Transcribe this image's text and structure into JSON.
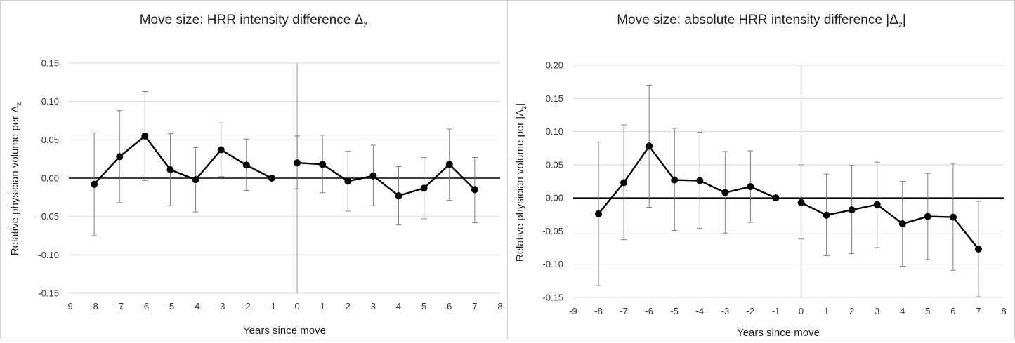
{
  "colors": {
    "gridline": "#d9d9d9",
    "zero_line": "#000000",
    "event_line": "#a6a6a6",
    "series": "#000000",
    "error_bar": "#7f7f7f",
    "border": "#d0d0d0"
  },
  "chart_data": [
    {
      "type": "line",
      "title": "Move size: HRR intensity difference Δ",
      "title_subscript": "z",
      "xlabel": "Years since move",
      "ylabel": "Relative physician volume per Δ",
      "ylabel_subscript": "z",
      "xlim": [
        -9,
        8
      ],
      "ylim": [
        -0.15,
        0.15
      ],
      "x_ticks": [
        -9,
        -8,
        -7,
        -6,
        -5,
        -4,
        -3,
        -2,
        -1,
        0,
        1,
        2,
        3,
        4,
        5,
        6,
        7,
        8
      ],
      "x_tick_labels": [
        "-9",
        "-8",
        "-7",
        "-6",
        "-5",
        "-4",
        "-3",
        "-2",
        "-1",
        "0",
        "1",
        "2",
        "3",
        "4",
        "5",
        "6",
        "7",
        "8"
      ],
      "y_ticks": [
        -0.15,
        -0.1,
        -0.05,
        0.0,
        0.05,
        0.1,
        0.15
      ],
      "y_tick_labels": [
        "-0.15",
        "-0.10",
        "-0.05",
        "0.00",
        "0.05",
        "0.10",
        "0.15"
      ],
      "grid": true,
      "reference_line_x": 0,
      "series": [
        {
          "segments": [
            [
              -8,
              -7,
              -6,
              -5,
              -4,
              -3,
              -2,
              -1
            ],
            [
              0,
              1,
              2,
              3,
              4,
              5,
              6,
              7
            ]
          ],
          "x": [
            -8,
            -7,
            -6,
            -5,
            -4,
            -3,
            -2,
            -1,
            0,
            1,
            2,
            3,
            4,
            5,
            6,
            7
          ],
          "y": [
            -0.008,
            0.028,
            0.055,
            0.011,
            -0.002,
            0.037,
            0.017,
            0.0,
            0.02,
            0.018,
            -0.004,
            0.003,
            -0.023,
            -0.013,
            0.018,
            -0.015
          ],
          "y_lower": [
            -0.075,
            -0.032,
            -0.003,
            -0.036,
            -0.044,
            0.002,
            -0.016,
            0.0,
            -0.014,
            -0.019,
            -0.043,
            -0.036,
            -0.061,
            -0.053,
            -0.029,
            -0.058
          ],
          "y_upper": [
            0.059,
            0.088,
            0.113,
            0.058,
            0.04,
            0.072,
            0.051,
            0.0,
            0.055,
            0.056,
            0.035,
            0.043,
            0.015,
            0.027,
            0.064,
            0.027
          ]
        }
      ]
    },
    {
      "type": "line",
      "title": "Move size: absolute HRR intensity difference |Δ",
      "title_subscript": "z",
      "title_suffix": "|",
      "xlabel": "Years since move",
      "ylabel": "Relative physician volume per |Δ",
      "ylabel_subscript": "z",
      "ylabel_suffix": "|",
      "xlim": [
        -9,
        8
      ],
      "ylim": [
        -0.15,
        0.2
      ],
      "x_ticks": [
        -9,
        -8,
        -7,
        -6,
        -5,
        -4,
        -3,
        -2,
        -1,
        0,
        1,
        2,
        3,
        4,
        5,
        6,
        7,
        8
      ],
      "x_tick_labels": [
        "-9",
        "-8",
        "-7",
        "-6",
        "-5",
        "-4",
        "-3",
        "-2",
        "-1",
        "0",
        "1",
        "2",
        "3",
        "4",
        "5",
        "6",
        "7",
        "8"
      ],
      "y_ticks": [
        -0.15,
        -0.1,
        -0.05,
        0.0,
        0.05,
        0.1,
        0.15,
        0.2
      ],
      "y_tick_labels": [
        "-0.15",
        "-0.10",
        "-0.05",
        "0.00",
        "0.05",
        "0.10",
        "0.15",
        "0.20"
      ],
      "grid": true,
      "reference_line_x": 0,
      "series": [
        {
          "segments": [
            [
              -8,
              -7,
              -6,
              -5,
              -4,
              -3,
              -2,
              -1
            ],
            [
              0,
              1,
              2,
              3,
              4,
              5,
              6,
              7
            ]
          ],
          "x": [
            -8,
            -7,
            -6,
            -5,
            -4,
            -3,
            -2,
            -1,
            0,
            1,
            2,
            3,
            4,
            5,
            6,
            7
          ],
          "y": [
            -0.024,
            0.023,
            0.078,
            0.027,
            0.026,
            0.008,
            0.017,
            0.0,
            -0.007,
            -0.026,
            -0.018,
            -0.01,
            -0.039,
            -0.028,
            -0.029,
            -0.077
          ],
          "y_lower": [
            -0.132,
            -0.063,
            -0.014,
            -0.049,
            -0.046,
            -0.053,
            -0.037,
            0.0,
            -0.062,
            -0.087,
            -0.084,
            -0.075,
            -0.103,
            -0.093,
            -0.109,
            -0.149
          ],
          "y_upper": [
            0.084,
            0.11,
            0.17,
            0.105,
            0.099,
            0.07,
            0.071,
            0.0,
            0.05,
            0.036,
            0.049,
            0.054,
            0.025,
            0.037,
            0.052,
            -0.005
          ]
        }
      ]
    }
  ]
}
